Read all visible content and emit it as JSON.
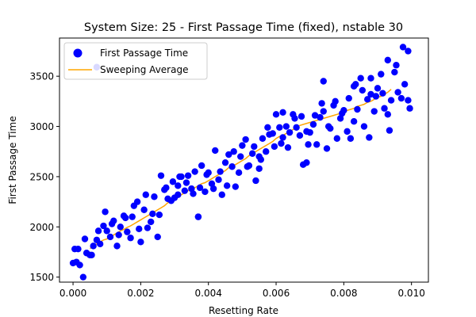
{
  "chart_data": {
    "type": "scatter",
    "title": "System Size: 25 - First Passage Time (fixed), nstable 30",
    "xlabel": "Resetting Rate",
    "ylabel": "First Passage Time",
    "xlim": [
      -0.0004,
      0.0105
    ],
    "ylim": [
      1450,
      3880
    ],
    "xticks": [
      0.0,
      0.002,
      0.004,
      0.006,
      0.008,
      0.01
    ],
    "xtick_labels": [
      "0.000",
      "0.002",
      "0.004",
      "0.006",
      "0.008",
      "0.010"
    ],
    "yticks": [
      1500,
      2000,
      2500,
      3000,
      3500
    ],
    "ytick_labels": [
      "1500",
      "2000",
      "2500",
      "3000",
      "3500"
    ],
    "grid": false,
    "legend_position": "upper-left",
    "series": [
      {
        "name": "First Passage Time",
        "kind": "scatter",
        "color": "#0000ff",
        "x": [
          0.0,
          0.0001,
          0.0002,
          0.0003,
          0.0004,
          0.0005,
          0.0006,
          0.0007,
          0.0008,
          0.0009,
          0.001,
          0.0011,
          0.0012,
          0.0013,
          0.0014,
          0.0015,
          0.0016,
          0.0017,
          0.0018,
          0.0019,
          0.002,
          0.0021,
          0.0022,
          0.0023,
          0.0024,
          0.0025,
          0.0026,
          0.0027,
          0.0028,
          0.0029,
          0.003,
          0.0031,
          0.0032,
          0.0033,
          0.0034,
          0.0035,
          0.0036,
          0.0037,
          0.0038,
          0.0039,
          0.004,
          0.0041,
          0.0042,
          0.0043,
          0.0044,
          0.0045,
          0.0046,
          0.0047,
          0.0048,
          0.0049,
          0.005,
          0.0051,
          0.0052,
          0.0053,
          0.0054,
          0.0055,
          0.0056,
          0.0057,
          0.0058,
          0.0059,
          0.006,
          0.0061,
          0.0062,
          0.0063,
          0.0064,
          0.0065,
          0.0066,
          0.0067,
          0.0068,
          0.0069,
          0.007,
          0.0071,
          0.0072,
          0.0073,
          0.0074,
          0.0075,
          0.0076,
          0.0077,
          0.0078,
          0.0079,
          0.008,
          0.0081,
          0.0082,
          0.0083,
          0.0084,
          0.0085,
          0.0086,
          0.0087,
          0.0088,
          0.0089,
          0.009,
          0.0091,
          0.0092,
          0.0093,
          0.0094,
          0.0095,
          0.0096,
          0.0097,
          0.0098,
          0.0099,
          5e-05,
          0.00015,
          0.00035,
          0.00055,
          0.00075,
          0.00095,
          0.00115,
          0.00135,
          0.00155,
          0.00175,
          0.00195,
          0.00215,
          0.00235,
          0.00255,
          0.00275,
          0.00295,
          0.00315,
          0.00335,
          0.00355,
          0.00375,
          0.00395,
          0.00415,
          0.00435,
          0.00455,
          0.00475,
          0.00495,
          0.00515,
          0.00535,
          0.00555,
          0.00575,
          0.00595,
          0.00615,
          0.00635,
          0.00655,
          0.00675,
          0.00695,
          0.00715,
          0.00735,
          0.00755,
          0.00775,
          0.00795,
          0.00815,
          0.00835,
          0.00855,
          0.00875,
          0.00895,
          0.00915,
          0.00935,
          0.00955,
          0.00975,
          0.00995,
          0.0007,
          0.0031,
          0.0037,
          0.0055,
          0.0062,
          0.0069,
          0.0074,
          0.0083,
          0.0088,
          0.0093,
          0.0099
        ],
        "y": [
          1640,
          1650,
          1620,
          1500,
          1740,
          1720,
          1810,
          1870,
          1830,
          2010,
          1960,
          1900,
          2060,
          1810,
          2000,
          2110,
          1950,
          1890,
          2210,
          2250,
          1850,
          2170,
          1990,
          2050,
          2300,
          1900,
          2510,
          2370,
          2280,
          2260,
          2290,
          2410,
          2500,
          2360,
          2510,
          2380,
          2550,
          2100,
          2610,
          2350,
          2540,
          2430,
          2760,
          2470,
          2320,
          2640,
          2720,
          2600,
          2400,
          2540,
          2810,
          2870,
          2610,
          2730,
          2460,
          2700,
          2880,
          2750,
          2920,
          2930,
          3120,
          2990,
          2890,
          3000,
          2940,
          3120,
          2990,
          2910,
          2620,
          2950,
          2940,
          3020,
          2820,
          3090,
          3150,
          2780,
          2980,
          3210,
          2880,
          3080,
          3160,
          2950,
          2880,
          3050,
          3170,
          3480,
          3000,
          3270,
          3320,
          3150,
          3380,
          3520,
          3180,
          3120,
          3260,
          3540,
          3340,
          3280,
          3420,
          3260,
          1780,
          1780,
          1880,
          1720,
          1960,
          2150,
          2030,
          1920,
          2090,
          2100,
          1980,
          2320,
          2130,
          2120,
          2390,
          2450,
          2500,
          2440,
          2330,
          2390,
          2520,
          2380,
          2550,
          2410,
          2750,
          2700,
          2600,
          2800,
          2670,
          2990,
          2800,
          2830,
          2790,
          3080,
          3100,
          2820,
          3110,
          3230,
          3000,
          3250,
          3130,
          3280,
          3420,
          3360,
          2890,
          3300,
          3330,
          2960,
          3610,
          3790,
          3180,
          3590,
          2320,
          2100,
          2580,
          3140,
          2640,
          3450,
          3400,
          3480,
          3660,
          3750
        ],
        "legend_label": "First Passage Time"
      },
      {
        "name": "Sweeping Average",
        "kind": "line",
        "color": "#ffa500",
        "x": [
          0.0005,
          0.0006,
          0.0007,
          0.0008,
          0.0009,
          0.001,
          0.0011,
          0.0012,
          0.0013,
          0.0014,
          0.0015,
          0.0016,
          0.0017,
          0.0018,
          0.0019,
          0.002,
          0.0021,
          0.0022,
          0.0023,
          0.0024,
          0.0025,
          0.0026,
          0.0027,
          0.0028,
          0.0029,
          0.003,
          0.0031,
          0.0032,
          0.0033,
          0.0034,
          0.0035,
          0.0036,
          0.0037,
          0.0038,
          0.0039,
          0.004,
          0.0041,
          0.0042,
          0.0043,
          0.0044,
          0.0045,
          0.0046,
          0.0047,
          0.0048,
          0.0049,
          0.005,
          0.0051,
          0.0052,
          0.0053,
          0.0054,
          0.0055,
          0.0056,
          0.0057,
          0.0058,
          0.0059,
          0.006,
          0.0061,
          0.0062,
          0.0063,
          0.0064,
          0.0065,
          0.0066,
          0.0067,
          0.0068,
          0.0069,
          0.007,
          0.0071,
          0.0072,
          0.0073,
          0.0074,
          0.0075,
          0.0076,
          0.0077,
          0.0078,
          0.0079,
          0.008,
          0.0081,
          0.0082,
          0.0083,
          0.0084,
          0.0085,
          0.0086,
          0.0087,
          0.0088,
          0.0089,
          0.009,
          0.0091,
          0.0092,
          0.0093,
          0.0094
        ],
        "y": [
          1785,
          1800,
          1830,
          1850,
          1870,
          1880,
          1900,
          1920,
          1940,
          1960,
          1975,
          1995,
          2010,
          2030,
          2050,
          2070,
          2090,
          2110,
          2130,
          2150,
          2170,
          2190,
          2210,
          2240,
          2260,
          2280,
          2300,
          2320,
          2340,
          2360,
          2380,
          2390,
          2410,
          2430,
          2440,
          2460,
          2480,
          2500,
          2520,
          2540,
          2560,
          2590,
          2600,
          2620,
          2640,
          2660,
          2680,
          2710,
          2730,
          2750,
          2770,
          2790,
          2810,
          2830,
          2850,
          2880,
          2900,
          2910,
          2930,
          2950,
          2970,
          2990,
          3010,
          3020,
          3030,
          3040,
          3050,
          3060,
          3070,
          3080,
          3090,
          3100,
          3110,
          3120,
          3130,
          3140,
          3160,
          3170,
          3180,
          3200,
          3210,
          3220,
          3240,
          3250,
          3270,
          3290,
          3300,
          3320,
          3340,
          3370
        ],
        "legend_label": "Sweeping Average"
      }
    ]
  }
}
